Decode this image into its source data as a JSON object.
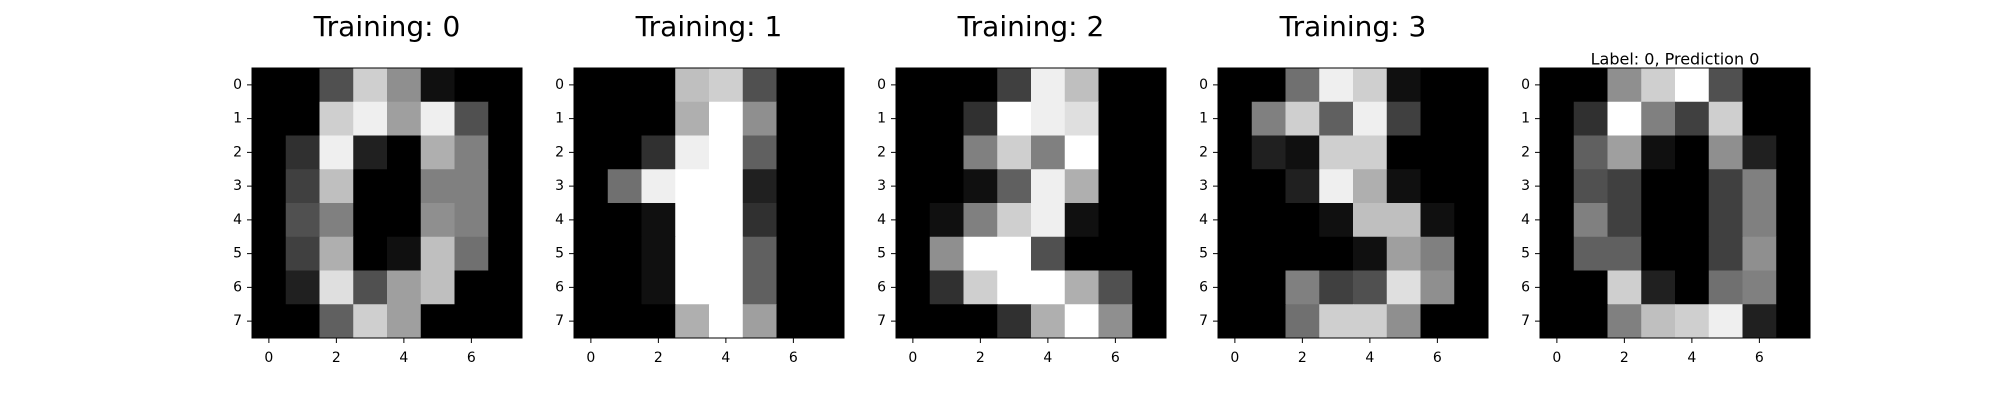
{
  "chart_data": [
    {
      "type": "heatmap",
      "title": "Training: 0",
      "colormap": "gray_r",
      "vmin": 0,
      "vmax": 16,
      "x_ticks": [
        "0",
        "2",
        "4",
        "6"
      ],
      "y_ticks": [
        "0",
        "1",
        "2",
        "3",
        "4",
        "5",
        "6",
        "7"
      ],
      "values": [
        [
          0,
          0,
          5,
          13,
          9,
          1,
          0,
          0
        ],
        [
          0,
          0,
          13,
          15,
          10,
          15,
          5,
          0
        ],
        [
          0,
          3,
          15,
          2,
          0,
          11,
          8,
          0
        ],
        [
          0,
          4,
          12,
          0,
          0,
          8,
          8,
          0
        ],
        [
          0,
          5,
          8,
          0,
          0,
          9,
          8,
          0
        ],
        [
          0,
          4,
          11,
          0,
          1,
          12,
          7,
          0
        ],
        [
          0,
          2,
          14,
          5,
          10,
          12,
          0,
          0
        ],
        [
          0,
          0,
          6,
          13,
          10,
          0,
          0,
          0
        ]
      ]
    },
    {
      "type": "heatmap",
      "title": "Training: 1",
      "colormap": "gray_r",
      "vmin": 0,
      "vmax": 16,
      "x_ticks": [
        "0",
        "2",
        "4",
        "6"
      ],
      "y_ticks": [
        "0",
        "1",
        "2",
        "3",
        "4",
        "5",
        "6",
        "7"
      ],
      "values": [
        [
          0,
          0,
          0,
          12,
          13,
          5,
          0,
          0
        ],
        [
          0,
          0,
          0,
          11,
          16,
          9,
          0,
          0
        ],
        [
          0,
          0,
          3,
          15,
          16,
          6,
          0,
          0
        ],
        [
          0,
          7,
          15,
          16,
          16,
          2,
          0,
          0
        ],
        [
          0,
          0,
          1,
          16,
          16,
          3,
          0,
          0
        ],
        [
          0,
          0,
          1,
          16,
          16,
          6,
          0,
          0
        ],
        [
          0,
          0,
          1,
          16,
          16,
          6,
          0,
          0
        ],
        [
          0,
          0,
          0,
          11,
          16,
          10,
          0,
          0
        ]
      ]
    },
    {
      "type": "heatmap",
      "title": "Training: 2",
      "colormap": "gray_r",
      "vmin": 0,
      "vmax": 16,
      "x_ticks": [
        "0",
        "2",
        "4",
        "6"
      ],
      "y_ticks": [
        "0",
        "1",
        "2",
        "3",
        "4",
        "5",
        "6",
        "7"
      ],
      "values": [
        [
          0,
          0,
          0,
          4,
          15,
          12,
          0,
          0
        ],
        [
          0,
          0,
          3,
          16,
          15,
          14,
          0,
          0
        ],
        [
          0,
          0,
          8,
          13,
          8,
          16,
          0,
          0
        ],
        [
          0,
          0,
          1,
          6,
          15,
          11,
          0,
          0
        ],
        [
          0,
          1,
          8,
          13,
          15,
          1,
          0,
          0
        ],
        [
          0,
          9,
          16,
          16,
          5,
          0,
          0,
          0
        ],
        [
          0,
          3,
          13,
          16,
          16,
          11,
          5,
          0
        ],
        [
          0,
          0,
          0,
          3,
          11,
          16,
          9,
          0
        ]
      ]
    },
    {
      "type": "heatmap",
      "title": "Training: 3",
      "colormap": "gray_r",
      "vmin": 0,
      "vmax": 16,
      "x_ticks": [
        "0",
        "2",
        "4",
        "6"
      ],
      "y_ticks": [
        "0",
        "1",
        "2",
        "3",
        "4",
        "5",
        "6",
        "7"
      ],
      "values": [
        [
          0,
          0,
          7,
          15,
          13,
          1,
          0,
          0
        ],
        [
          0,
          8,
          13,
          6,
          15,
          4,
          0,
          0
        ],
        [
          0,
          2,
          1,
          13,
          13,
          0,
          0,
          0
        ],
        [
          0,
          0,
          2,
          15,
          11,
          1,
          0,
          0
        ],
        [
          0,
          0,
          0,
          1,
          12,
          12,
          1,
          0
        ],
        [
          0,
          0,
          0,
          0,
          1,
          10,
          8,
          0
        ],
        [
          0,
          0,
          8,
          4,
          5,
          14,
          9,
          0
        ],
        [
          0,
          0,
          7,
          13,
          13,
          9,
          0,
          0
        ]
      ]
    },
    {
      "type": "heatmap",
      "title": "Label: 0, Prediction 0",
      "colormap": "gray_r",
      "vmin": 0,
      "vmax": 16,
      "x_ticks": [
        "0",
        "2",
        "4",
        "6"
      ],
      "y_ticks": [
        "0",
        "1",
        "2",
        "3",
        "4",
        "5",
        "6",
        "7"
      ],
      "values": [
        [
          0,
          0,
          9,
          13,
          16,
          5,
          0,
          0
        ],
        [
          0,
          3,
          16,
          8,
          4,
          13,
          0,
          0
        ],
        [
          0,
          6,
          10,
          1,
          0,
          9,
          2,
          0
        ],
        [
          0,
          5,
          4,
          0,
          0,
          4,
          8,
          0
        ],
        [
          0,
          8,
          4,
          0,
          0,
          4,
          8,
          0
        ],
        [
          0,
          6,
          6,
          0,
          0,
          4,
          9,
          0
        ],
        [
          0,
          0,
          13,
          2,
          0,
          7,
          8,
          0
        ],
        [
          0,
          0,
          8,
          12,
          13,
          15,
          2,
          0
        ]
      ]
    }
  ]
}
